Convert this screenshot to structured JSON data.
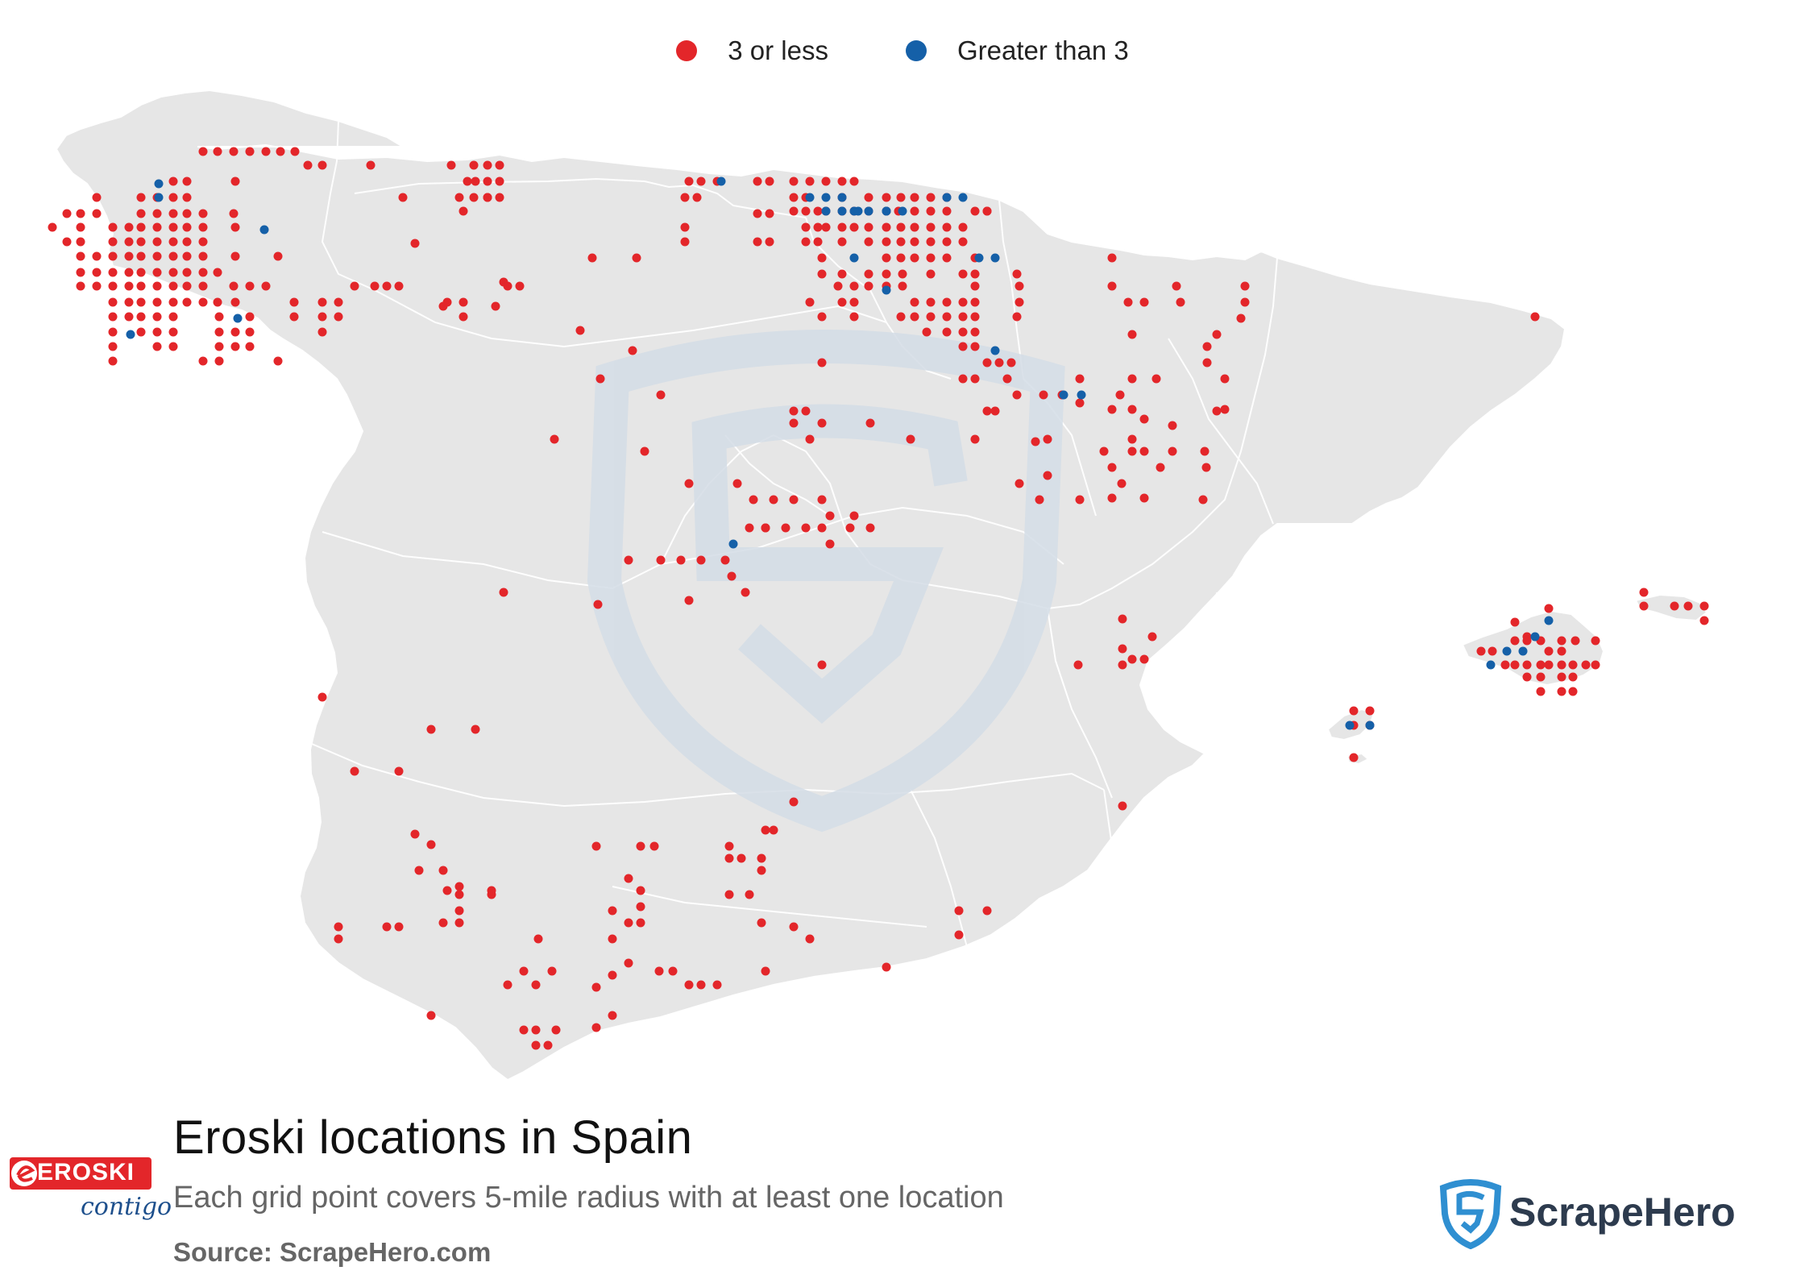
{
  "legend": {
    "items": [
      {
        "label": "3 or less",
        "color": "#e3262a"
      },
      {
        "label": "Greater than 3",
        "color": "#1560a8"
      }
    ]
  },
  "title": "Eroski locations in Spain",
  "subtitle": "Each grid point covers 5-mile radius with at least one location",
  "source": "Source: ScrapeHero.com",
  "brand": {
    "logo_text": "EROSKI",
    "tagline": "contigo"
  },
  "watermark": {
    "text": "ScrapeHero"
  },
  "colors": {
    "land": "#e6e6e6",
    "border": "#ffffff",
    "watermark": "#d6dfe7"
  }
}
